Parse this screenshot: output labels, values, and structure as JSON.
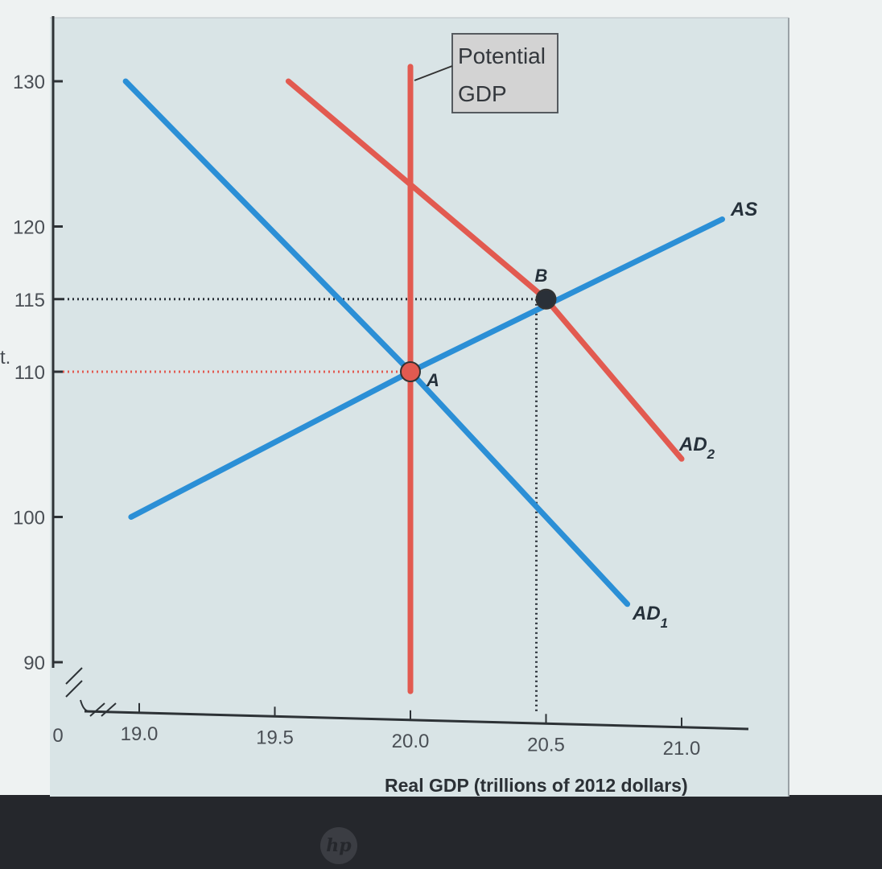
{
  "chart_data": {
    "type": "line",
    "xlabel": "Real GDP (trillions of 2012 dollars)",
    "ylabel": "",
    "xlim": [
      18.8,
      21.25
    ],
    "ylim": [
      87,
      131
    ],
    "x_ticks": [
      "19.0",
      "19.5",
      "20.0",
      "20.5",
      "21.0"
    ],
    "x_tick_values": [
      19.0,
      19.5,
      20.0,
      20.5,
      21.0
    ],
    "x_origin_label": "0",
    "y_ticks": [
      "130",
      "120",
      "115",
      "110",
      "100",
      "90"
    ],
    "y_tick_values": [
      130,
      120,
      115,
      110,
      100,
      90
    ],
    "highlight_x_tick": "20.0",
    "highlight_y_tick": "110",
    "series": [
      {
        "name": "AD1",
        "color": "#2b8fd6",
        "points": [
          [
            18.95,
            130
          ],
          [
            20.0,
            110
          ],
          [
            20.8,
            94
          ]
        ]
      },
      {
        "name": "AD2",
        "color": "#e25a50",
        "points": [
          [
            19.55,
            130
          ],
          [
            20.5,
            115
          ],
          [
            21.0,
            104
          ]
        ]
      },
      {
        "name": "AS",
        "color": "#2b8fd6",
        "points": [
          [
            18.97,
            100
          ],
          [
            20.0,
            110
          ],
          [
            21.15,
            120.5
          ]
        ]
      },
      {
        "name": "Potential GDP",
        "color": "#e25a50",
        "points": [
          [
            20.0,
            88
          ],
          [
            20.0,
            131
          ]
        ]
      }
    ],
    "labels": {
      "ad1": "AD",
      "ad1_sub": "1",
      "ad2": "AD",
      "ad2_sub": "2",
      "as": "AS",
      "potential_line1": "Potential",
      "potential_line2": "GDP"
    },
    "points": [
      {
        "label": "A",
        "x": 20.0,
        "y": 110,
        "color": "#e25a50"
      },
      {
        "label": "B",
        "x": 20.5,
        "y": 115,
        "color": "#2a3038"
      }
    ],
    "guides": [
      {
        "from_point": "A",
        "color": "#e25a50"
      },
      {
        "from_point": "B",
        "color": "#2a3038"
      }
    ],
    "margin_marks": {
      "left_fragment": "t."
    }
  }
}
